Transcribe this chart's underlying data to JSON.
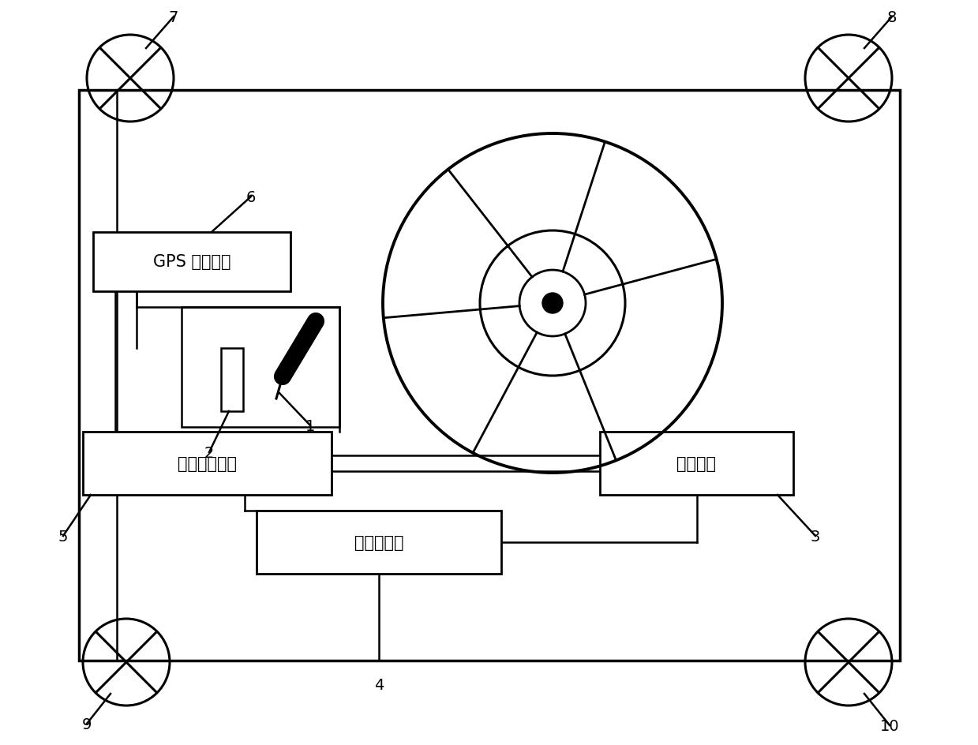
{
  "bg_color": "#ffffff",
  "line_color": "#000000",
  "gps_label": "GPS 导航系统",
  "controller_label": "转向灯控制器",
  "inertia_label": "惯性传感器",
  "distance_label": "距离感器",
  "fig_w": 12.39,
  "fig_h": 9.45
}
